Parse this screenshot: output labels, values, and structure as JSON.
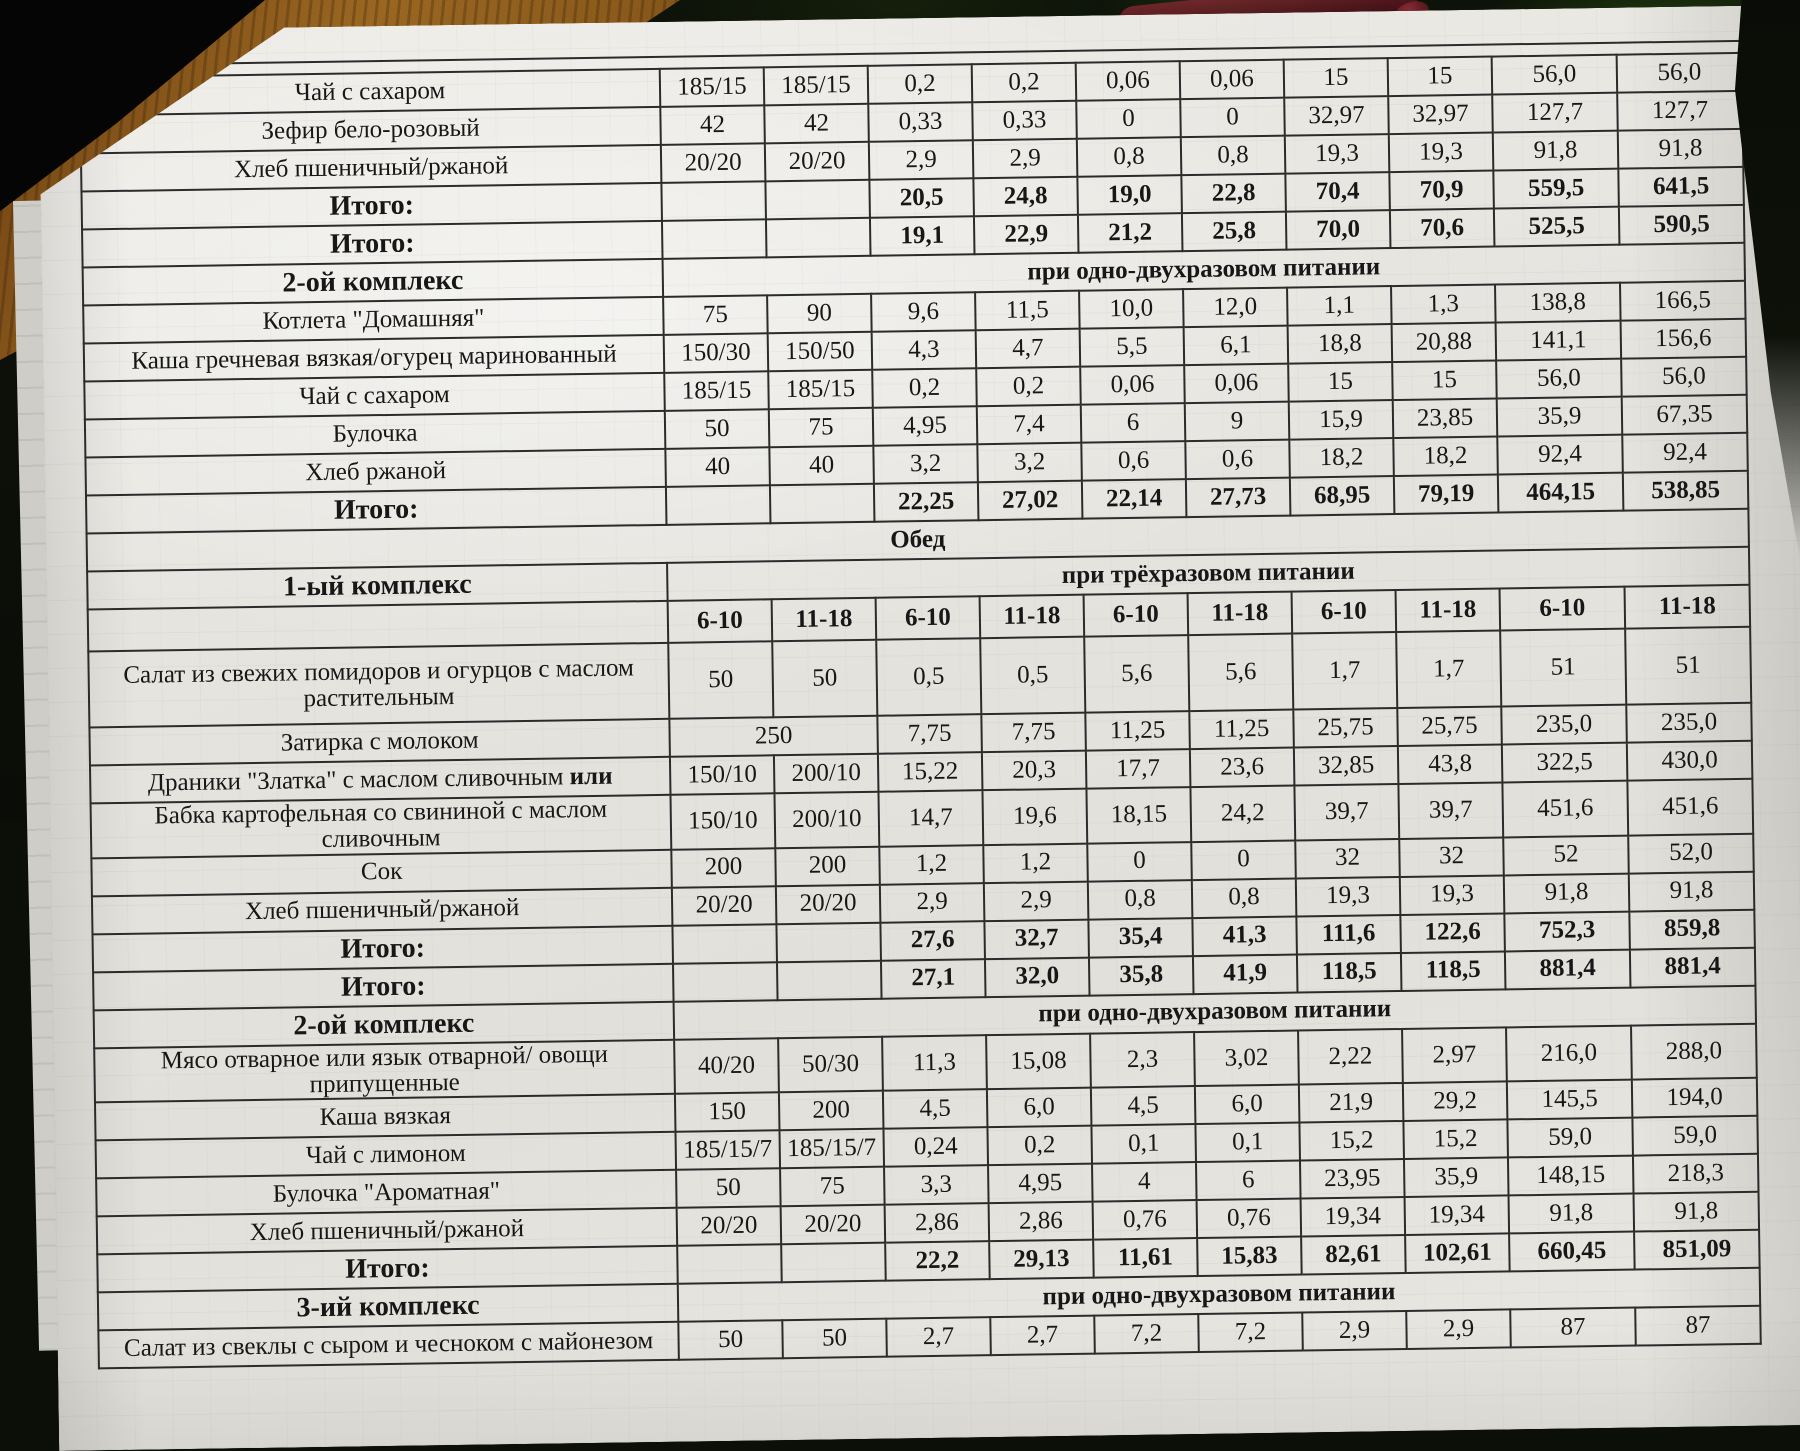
{
  "table": {
    "meal_title": "Обед",
    "age_group_labels": [
      "6-10",
      "11-18"
    ],
    "rows": [
      {
        "kind": "cut"
      },
      {
        "kind": "item",
        "label": "Чай с сахаром",
        "cells": [
          "185/15",
          "185/15",
          "0,2",
          "0,2",
          "0,06",
          "0,06",
          "15",
          "15",
          "56,0",
          "56,0"
        ]
      },
      {
        "kind": "item",
        "label": "Зефир бело-розовый",
        "cells": [
          "42",
          "42",
          "0,33",
          "0,33",
          "0",
          "0",
          "32,97",
          "32,97",
          "127,7",
          "127,7"
        ]
      },
      {
        "kind": "item",
        "label": "Хлеб пшеничный/ржаной",
        "cells": [
          "20/20",
          "20/20",
          "2,9",
          "2,9",
          "0,8",
          "0,8",
          "19,3",
          "19,3",
          "91,8",
          "91,8"
        ]
      },
      {
        "kind": "total",
        "label": "Итого:",
        "cells": [
          "",
          "",
          "20,5",
          "24,8",
          "19,0",
          "22,8",
          "70,4",
          "70,9",
          "559,5",
          "641,5"
        ]
      },
      {
        "kind": "total",
        "label": "Итого:",
        "cells": [
          "",
          "",
          "19,1",
          "22,9",
          "21,2",
          "25,8",
          "70,0",
          "70,6",
          "525,5",
          "590,5"
        ]
      },
      {
        "kind": "section",
        "label": "2-ой комплекс",
        "note": "при одно-двухразовом питании"
      },
      {
        "kind": "item",
        "label": "Котлета \"Домашняя\"",
        "cells": [
          "75",
          "90",
          "9,6",
          "11,5",
          "10,0",
          "12,0",
          "1,1",
          "1,3",
          "138,8",
          "166,5"
        ]
      },
      {
        "kind": "item",
        "label": "Каша гречневая вязкая/огурец маринованный",
        "cells": [
          "150/30",
          "150/50",
          "4,3",
          "4,7",
          "5,5",
          "6,1",
          "18,8",
          "20,88",
          "141,1",
          "156,6"
        ]
      },
      {
        "kind": "item",
        "label": "Чай с сахаром",
        "cells": [
          "185/15",
          "185/15",
          "0,2",
          "0,2",
          "0,06",
          "0,06",
          "15",
          "15",
          "56,0",
          "56,0"
        ]
      },
      {
        "kind": "item",
        "label": "Булочка",
        "cells": [
          "50",
          "75",
          "4,95",
          "7,4",
          "6",
          "9",
          "15,9",
          "23,85",
          "35,9",
          "67,35"
        ]
      },
      {
        "kind": "item",
        "label": "Хлеб ржаной",
        "cells": [
          "40",
          "40",
          "3,2",
          "3,2",
          "0,6",
          "0,6",
          "18,2",
          "18,2",
          "92,4",
          "92,4"
        ]
      },
      {
        "kind": "total",
        "label": "Итого:",
        "cells": [
          "",
          "",
          "22,25",
          "27,02",
          "22,14",
          "27,73",
          "68,95",
          "79,19",
          "464,15",
          "538,85"
        ]
      },
      {
        "kind": "meal",
        "label": "Обед"
      },
      {
        "kind": "section",
        "label": "1-ый комплекс",
        "note": "при трёхразовом питании"
      },
      {
        "kind": "colheads",
        "cells": [
          "6-10",
          "11-18",
          "6-10",
          "11-18",
          "6-10",
          "11-18",
          "6-10",
          "11-18",
          "6-10",
          "11-18"
        ]
      },
      {
        "kind": "item",
        "tall": true,
        "label": "Салат из свежих помидоров и огурцов с маслом растительным",
        "cells": [
          "50",
          "50",
          "0,5",
          "0,5",
          "5,6",
          "5,6",
          "1,7",
          "1,7",
          "51",
          "51"
        ]
      },
      {
        "kind": "item",
        "label": "Затирка с молоком",
        "cells": [
          {
            "t": "250",
            "span": 2
          },
          "7,75",
          "7,75",
          "11,25",
          "11,25",
          "25,75",
          "25,75",
          "235,0",
          "235,0"
        ]
      },
      {
        "kind": "item",
        "label": "Драники \"Златка\" с маслом сливочным ",
        "bold_suffix": "или",
        "cells": [
          "150/10",
          "200/10",
          "15,22",
          "20,3",
          "17,7",
          "23,6",
          "32,85",
          "43,8",
          "322,5",
          "430,0"
        ]
      },
      {
        "kind": "item",
        "label": "Бабка картофельная со свининой с маслом сливочным",
        "cells": [
          "150/10",
          "200/10",
          "14,7",
          "19,6",
          "18,15",
          "24,2",
          "39,7",
          "39,7",
          "451,6",
          "451,6"
        ]
      },
      {
        "kind": "item",
        "label": "Сок",
        "cells": [
          "200",
          "200",
          "1,2",
          "1,2",
          "0",
          "0",
          "32",
          "32",
          "52",
          "52,0"
        ]
      },
      {
        "kind": "item",
        "label": "Хлеб пшеничный/ржаной",
        "cells": [
          "20/20",
          "20/20",
          "2,9",
          "2,9",
          "0,8",
          "0,8",
          "19,3",
          "19,3",
          "91,8",
          "91,8"
        ]
      },
      {
        "kind": "total",
        "label": "Итого:",
        "cells": [
          "",
          "",
          "27,6",
          "32,7",
          "35,4",
          "41,3",
          "111,6",
          "122,6",
          "752,3",
          "859,8"
        ]
      },
      {
        "kind": "total",
        "label": "Итого:",
        "cells": [
          "",
          "",
          "27,1",
          "32,0",
          "35,8",
          "41,9",
          "118,5",
          "118,5",
          "881,4",
          "881,4"
        ]
      },
      {
        "kind": "section",
        "label": "2-ой комплекс",
        "note": "при одно-двухразовом питании"
      },
      {
        "kind": "item",
        "label": "Мясо отварное или язык отварной/ овощи припущенные",
        "cells": [
          "40/20",
          "50/30",
          "11,3",
          "15,08",
          "2,3",
          "3,02",
          "2,22",
          "2,97",
          "216,0",
          "288,0"
        ]
      },
      {
        "kind": "item",
        "label": "Каша вязкая",
        "cells": [
          "150",
          "200",
          "4,5",
          "6,0",
          "4,5",
          "6,0",
          "21,9",
          "29,2",
          "145,5",
          "194,0"
        ]
      },
      {
        "kind": "item",
        "label": "Чай с лимоном",
        "cells": [
          "185/15/7",
          "185/15/7",
          "0,24",
          "0,2",
          "0,1",
          "0,1",
          "15,2",
          "15,2",
          "59,0",
          "59,0"
        ]
      },
      {
        "kind": "item",
        "label": "Булочка \"Ароматная\"",
        "cells": [
          "50",
          "75",
          "3,3",
          "4,95",
          "4",
          "6",
          "23,95",
          "35,9",
          "148,15",
          "218,3"
        ]
      },
      {
        "kind": "item",
        "label": "Хлеб пшеничный/ржаной",
        "cells": [
          "20/20",
          "20/20",
          "2,86",
          "2,86",
          "0,76",
          "0,76",
          "19,34",
          "19,34",
          "91,8",
          "91,8"
        ]
      },
      {
        "kind": "total",
        "label": "Итого:",
        "cells": [
          "",
          "",
          "22,2",
          "29,13",
          "11,61",
          "15,83",
          "82,61",
          "102,61",
          "660,45",
          "851,09"
        ]
      },
      {
        "kind": "section",
        "label": "3-ий комплекс",
        "note": "при одно-двухразовом питании"
      },
      {
        "kind": "item",
        "label": "Салат из свеклы с сыром и чесноком с майонезом",
        "cells": [
          "50",
          "50",
          "2,7",
          "2,7",
          "7,2",
          "7,2",
          "2,9",
          "2,9",
          "87",
          "87"
        ]
      }
    ]
  }
}
